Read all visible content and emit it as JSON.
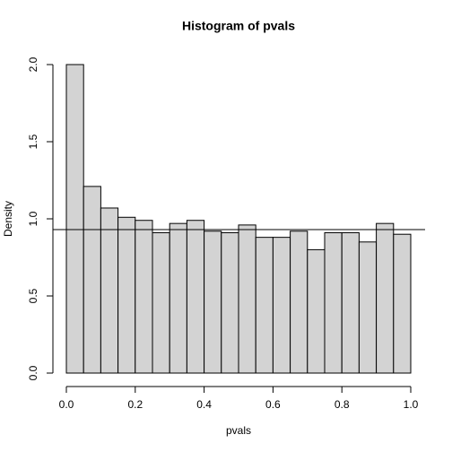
{
  "chart_data": {
    "type": "histogram",
    "title": "Histogram of pvals",
    "x_label": "pvals",
    "y_label": "Density",
    "bins": [
      0,
      0.05,
      0.1,
      0.15,
      0.2,
      0.25,
      0.3,
      0.35,
      0.4,
      0.45,
      0.5,
      0.55,
      0.6,
      0.65,
      0.7,
      0.75,
      0.8,
      0.85,
      0.9,
      0.95,
      1
    ],
    "values": [
      2.0,
      1.21,
      1.07,
      1.01,
      0.99,
      0.91,
      0.97,
      0.99,
      0.92,
      0.91,
      0.96,
      0.88,
      0.88,
      0.92,
      0.8,
      0.91,
      0.91,
      0.85,
      0.97,
      0.9
    ],
    "color": "#d3d3d3",
    "hline": 0.93,
    "xlim": [
      0,
      1
    ],
    "ylim": [
      0,
      2
    ],
    "xticks": [
      {
        "value": 0,
        "label": "0.0"
      },
      0.2,
      0.4,
      0.6,
      0.8,
      {
        "value": 1,
        "label": "1.0"
      }
    ],
    "yticks": [
      {
        "value": 0,
        "label": "0.0"
      },
      0.5,
      {
        "value": 1,
        "label": "1.0"
      },
      1.5,
      {
        "value": 2,
        "label": "2.0"
      }
    ]
  }
}
